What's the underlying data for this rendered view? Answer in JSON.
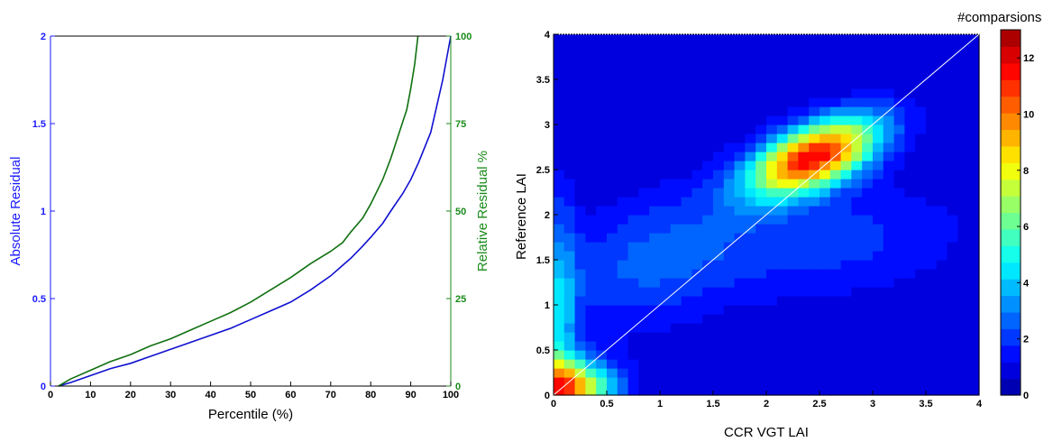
{
  "chart_data": [
    {
      "type": "line",
      "xlabel": "Percentile (%)",
      "ylabel": "Absolute Residual",
      "ylabel_right": "Relative Residual %",
      "xlim": [
        0,
        100
      ],
      "ylim": [
        0,
        2
      ],
      "ylim_right": [
        0,
        100
      ],
      "x_ticks": [
        "0",
        "10",
        "20",
        "30",
        "40",
        "50",
        "60",
        "70",
        "80",
        "90",
        "100"
      ],
      "y_ticks": [
        "0",
        "0.5",
        "1",
        "1.5",
        "2"
      ],
      "y_ticks_right": [
        "0",
        "25",
        "50",
        "75",
        "100"
      ],
      "grid": false,
      "colors": {
        "left_axis": "#1a1aff",
        "right_axis": "#1a8a1a",
        "absolute": "#1010d0",
        "relative": "#107010"
      },
      "series": [
        {
          "axis": "left",
          "x": [
            2,
            5,
            10,
            15,
            20,
            25,
            30,
            35,
            40,
            45,
            50,
            55,
            60,
            65,
            70,
            73,
            75,
            78,
            80,
            83,
            85,
            88,
            90,
            92,
            95,
            98,
            100
          ],
          "values": [
            0,
            0.02,
            0.06,
            0.1,
            0.13,
            0.17,
            0.21,
            0.25,
            0.29,
            0.33,
            0.38,
            0.43,
            0.48,
            0.55,
            0.63,
            0.69,
            0.73,
            0.8,
            0.85,
            0.93,
            1.0,
            1.1,
            1.18,
            1.28,
            1.45,
            1.75,
            2.0
          ]
        },
        {
          "axis": "right",
          "x": [
            2,
            5,
            10,
            15,
            20,
            25,
            30,
            35,
            40,
            45,
            50,
            55,
            60,
            65,
            70,
            73,
            75,
            78,
            80,
            83,
            85,
            87,
            89,
            90,
            91,
            91.8
          ],
          "values": [
            0,
            2,
            4.5,
            7,
            9,
            11.5,
            13.5,
            16,
            18.5,
            21,
            24,
            27.5,
            31,
            35,
            38.5,
            41,
            44,
            48,
            52,
            59,
            65,
            72,
            79,
            85,
            92,
            100
          ]
        }
      ]
    },
    {
      "type": "heatmap",
      "xlabel": "CCR VGT LAI",
      "ylabel": "Reference LAI",
      "colorbar_label": "#comparsions",
      "xlim": [
        0,
        4
      ],
      "ylim": [
        0,
        4
      ],
      "x_ticks": [
        "0",
        "0.5",
        "1",
        "1.5",
        "2",
        "2.5",
        "3",
        "3.5",
        "4"
      ],
      "y_ticks": [
        "0",
        "0.5",
        "1",
        "1.5",
        "2",
        "2.5",
        "3",
        "3.5",
        "4"
      ],
      "colorbar_range": [
        0,
        13
      ],
      "colorbar_ticks": [
        "0",
        "2",
        "4",
        "6",
        "8",
        "10",
        "12"
      ],
      "one_to_one_line": true,
      "density_components": [
        {
          "center": [
            2.45,
            2.65
          ],
          "sigma": [
            0.42,
            0.3
          ],
          "rho": 0.55,
          "amplitude": 11
        },
        {
          "center": [
            0.12,
            0.08
          ],
          "sigma": [
            0.3,
            0.22
          ],
          "rho": 0.0,
          "amplitude": 9
        },
        {
          "center": [
            0.05,
            0.8
          ],
          "sigma": [
            0.12,
            0.9
          ],
          "rho": 0.0,
          "amplitude": 3.2
        },
        {
          "center": [
            0.9,
            1.5
          ],
          "sigma": [
            0.65,
            0.55
          ],
          "rho": 0.35,
          "amplitude": 1.8
        },
        {
          "center": [
            2.6,
            1.7
          ],
          "sigma": [
            0.9,
            0.45
          ],
          "rho": 0.2,
          "amplitude": 1.4
        }
      ]
    }
  ]
}
